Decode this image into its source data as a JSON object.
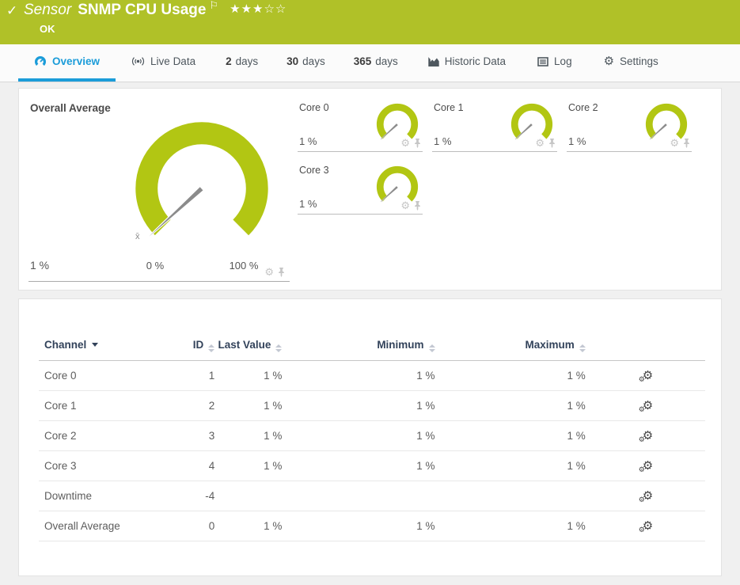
{
  "colors": {
    "header-green": "#b0c128",
    "gauge-green": "#b2c613",
    "accent-blue": "#1b9cd9",
    "header-navy": "#32425a"
  },
  "topbar": {
    "kind": "Sensor",
    "title": "SNMP CPU Usage",
    "status": "OK",
    "stars_filled": "★★★",
    "stars_empty": "☆☆"
  },
  "tabs": {
    "overview": "Overview",
    "live": "Live Data",
    "d2_num": "2",
    "d2_label": "days",
    "d30_num": "30",
    "d30_label": "days",
    "d365_num": "365",
    "d365_label": "days",
    "historic": "Historic Data",
    "log": "Log",
    "settings": "Settings"
  },
  "gauges": {
    "overall": {
      "name": "Overall Average",
      "value": "1 %",
      "min_label": "0 %",
      "max_label": "100 %",
      "mean_marker": "x̄"
    },
    "cores": [
      {
        "name": "Core 0",
        "value": "1 %"
      },
      {
        "name": "Core 1",
        "value": "1 %"
      },
      {
        "name": "Core 2",
        "value": "1 %"
      },
      {
        "name": "Core 3",
        "value": "1 %"
      }
    ]
  },
  "table": {
    "headers": {
      "channel": "Channel",
      "id": "ID",
      "last": "Last Value",
      "min": "Minimum",
      "max": "Maximum"
    },
    "rows": [
      {
        "channel": "Core 0",
        "id": "1",
        "last": "1 %",
        "min": "1 %",
        "max": "1 %"
      },
      {
        "channel": "Core 1",
        "id": "2",
        "last": "1 %",
        "min": "1 %",
        "max": "1 %"
      },
      {
        "channel": "Core 2",
        "id": "3",
        "last": "1 %",
        "min": "1 %",
        "max": "1 %"
      },
      {
        "channel": "Core 3",
        "id": "4",
        "last": "1 %",
        "min": "1 %",
        "max": "1 %"
      },
      {
        "channel": "Downtime",
        "id": "-4",
        "last": "",
        "min": "",
        "max": ""
      },
      {
        "channel": "Overall Average",
        "id": "0",
        "last": "1 %",
        "min": "1 %",
        "max": "1 %"
      }
    ]
  },
  "chart_data": [
    {
      "type": "gauge",
      "title": "Overall Average",
      "value": 1,
      "unit": "%",
      "min": 0,
      "max": 100,
      "min_label": "0 %",
      "max_label": "100 %"
    },
    {
      "type": "gauge",
      "title": "Core 0",
      "value": 1,
      "unit": "%",
      "min": 0,
      "max": 100
    },
    {
      "type": "gauge",
      "title": "Core 1",
      "value": 1,
      "unit": "%",
      "min": 0,
      "max": 100
    },
    {
      "type": "gauge",
      "title": "Core 2",
      "value": 1,
      "unit": "%",
      "min": 0,
      "max": 100
    },
    {
      "type": "gauge",
      "title": "Core 3",
      "value": 1,
      "unit": "%",
      "min": 0,
      "max": 100
    }
  ]
}
